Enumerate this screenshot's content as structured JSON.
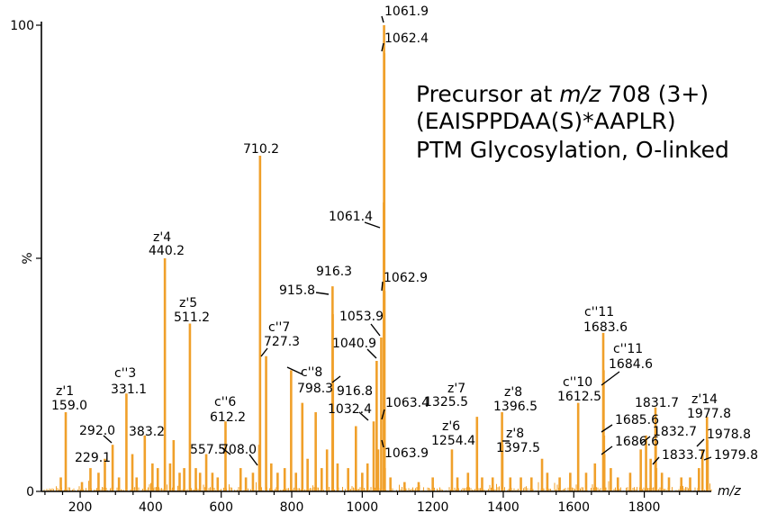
{
  "chart_data": {
    "type": "bar",
    "xlabel": "m/z",
    "ylabel": "%",
    "xlim": [
      90,
      1990
    ],
    "ylim": [
      0,
      100
    ],
    "x_ticks": [
      "200",
      "400",
      "600",
      "800",
      "1000",
      "1200",
      "1400",
      "1600",
      "1800"
    ],
    "y_ticks": [
      "0",
      "50",
      "100"
    ],
    "annotation": {
      "line1_prefix": "Precursor at ",
      "line1_italic": "m/z",
      "line1_suffix": " 708 (3+)",
      "line2": "(EAISPPDAA(S)*AAPLR)",
      "line3": "PTM Glycosylation, O-linked"
    },
    "labeled_peaks": [
      {
        "mz": 159.0,
        "intensity": 17,
        "ion": "z'1",
        "label": "159.0"
      },
      {
        "mz": 229.1,
        "intensity": 5,
        "ion": "",
        "label": "229.1"
      },
      {
        "mz": 292.0,
        "intensity": 10,
        "ion": "",
        "label": "292.0"
      },
      {
        "mz": 331.1,
        "intensity": 21,
        "ion": "c''3",
        "label": "331.1"
      },
      {
        "mz": 383.2,
        "intensity": 12,
        "ion": "",
        "label": "383.2"
      },
      {
        "mz": 440.2,
        "intensity": 50,
        "ion": "z'4",
        "label": "440.2"
      },
      {
        "mz": 511.2,
        "intensity": 36,
        "ion": "z'5",
        "label": "511.2"
      },
      {
        "mz": 557.5,
        "intensity": 8,
        "ion": "",
        "label": "557.5"
      },
      {
        "mz": 612.2,
        "intensity": 15,
        "ion": "c''6",
        "label": "612.2"
      },
      {
        "mz": 708.0,
        "intensity": 10,
        "ion": "",
        "label": "708.0"
      },
      {
        "mz": 710.2,
        "intensity": 72,
        "ion": "",
        "label": "710.2"
      },
      {
        "mz": 727.3,
        "intensity": 29,
        "ion": "c''7",
        "label": "727.3"
      },
      {
        "mz": 798.3,
        "intensity": 26,
        "ion": "c''8",
        "label": "798.3"
      },
      {
        "mz": 915.8,
        "intensity": 44,
        "ion": "",
        "label": "915.8"
      },
      {
        "mz": 916.3,
        "intensity": 38,
        "ion": "",
        "label": "916.3"
      },
      {
        "mz": 916.8,
        "intensity": 24,
        "ion": "",
        "label": "916.8"
      },
      {
        "mz": 1032.4,
        "intensity": 15,
        "ion": "",
        "label": "1032.4"
      },
      {
        "mz": 1040.9,
        "intensity": 28,
        "ion": "",
        "label": "1040.9"
      },
      {
        "mz": 1053.9,
        "intensity": 33,
        "ion": "",
        "label": "1053.9"
      },
      {
        "mz": 1061.4,
        "intensity": 62,
        "ion": "",
        "label": "1061.4"
      },
      {
        "mz": 1061.9,
        "intensity": 100,
        "ion": "",
        "label": "1061.9"
      },
      {
        "mz": 1062.4,
        "intensity": 94,
        "ion": "",
        "label": "1062.4"
      },
      {
        "mz": 1062.9,
        "intensity": 43,
        "ion": "",
        "label": "1062.9"
      },
      {
        "mz": 1063.4,
        "intensity": 18,
        "ion": "",
        "label": "1063.4"
      },
      {
        "mz": 1063.9,
        "intensity": 5,
        "ion": "",
        "label": "1063.9"
      },
      {
        "mz": 1254.4,
        "intensity": 9,
        "ion": "z'6",
        "label": "1254.4"
      },
      {
        "mz": 1325.5,
        "intensity": 16,
        "ion": "z'7",
        "label": "1325.5"
      },
      {
        "mz": 1396.5,
        "intensity": 17,
        "ion": "z'8",
        "label": "1396.5"
      },
      {
        "mz": 1397.5,
        "intensity": 10,
        "ion": "z'8",
        "label": "1397.5"
      },
      {
        "mz": 1612.5,
        "intensity": 19,
        "ion": "c''10",
        "label": "1612.5"
      },
      {
        "mz": 1683.6,
        "intensity": 34,
        "ion": "c''11",
        "label": "1683.6"
      },
      {
        "mz": 1684.6,
        "intensity": 26,
        "ion": "c''11",
        "label": "1684.6"
      },
      {
        "mz": 1685.6,
        "intensity": 12,
        "ion": "",
        "label": "1685.6"
      },
      {
        "mz": 1686.6,
        "intensity": 8,
        "ion": "",
        "label": "1686.6"
      },
      {
        "mz": 1831.7,
        "intensity": 18,
        "ion": "",
        "label": "1831.7"
      },
      {
        "mz": 1832.7,
        "intensity": 11,
        "ion": "",
        "label": "1832.7"
      },
      {
        "mz": 1833.7,
        "intensity": 5,
        "ion": "",
        "label": "1833.7"
      },
      {
        "mz": 1977.8,
        "intensity": 16,
        "ion": "z'14",
        "label": "1977.8"
      },
      {
        "mz": 1978.8,
        "intensity": 11,
        "ion": "",
        "label": "1978.8"
      },
      {
        "mz": 1979.8,
        "intensity": 7,
        "ion": "",
        "label": "1979.8"
      }
    ],
    "minor_peaks": [
      {
        "mz": 145,
        "intensity": 3
      },
      {
        "mz": 205,
        "intensity": 2
      },
      {
        "mz": 252,
        "intensity": 4
      },
      {
        "mz": 270,
        "intensity": 7
      },
      {
        "mz": 310,
        "intensity": 3
      },
      {
        "mz": 348,
        "intensity": 8
      },
      {
        "mz": 360,
        "intensity": 3
      },
      {
        "mz": 405,
        "intensity": 6
      },
      {
        "mz": 420,
        "intensity": 5
      },
      {
        "mz": 455,
        "intensity": 6
      },
      {
        "mz": 465,
        "intensity": 11
      },
      {
        "mz": 482,
        "intensity": 4
      },
      {
        "mz": 495,
        "intensity": 5
      },
      {
        "mz": 528,
        "intensity": 5
      },
      {
        "mz": 540,
        "intensity": 4
      },
      {
        "mz": 575,
        "intensity": 4
      },
      {
        "mz": 590,
        "intensity": 3
      },
      {
        "mz": 655,
        "intensity": 5
      },
      {
        "mz": 670,
        "intensity": 3
      },
      {
        "mz": 690,
        "intensity": 4
      },
      {
        "mz": 742,
        "intensity": 6
      },
      {
        "mz": 760,
        "intensity": 4
      },
      {
        "mz": 780,
        "intensity": 5
      },
      {
        "mz": 812,
        "intensity": 4
      },
      {
        "mz": 830,
        "intensity": 19
      },
      {
        "mz": 845,
        "intensity": 7
      },
      {
        "mz": 868,
        "intensity": 17
      },
      {
        "mz": 885,
        "intensity": 5
      },
      {
        "mz": 900,
        "intensity": 9
      },
      {
        "mz": 930,
        "intensity": 6
      },
      {
        "mz": 960,
        "intensity": 5
      },
      {
        "mz": 982,
        "intensity": 14
      },
      {
        "mz": 1000,
        "intensity": 4
      },
      {
        "mz": 1015,
        "intensity": 6
      },
      {
        "mz": 1045,
        "intensity": 9
      },
      {
        "mz": 1080,
        "intensity": 3
      },
      {
        "mz": 1120,
        "intensity": 2
      },
      {
        "mz": 1160,
        "intensity": 2
      },
      {
        "mz": 1200,
        "intensity": 3
      },
      {
        "mz": 1270,
        "intensity": 3
      },
      {
        "mz": 1300,
        "intensity": 4
      },
      {
        "mz": 1340,
        "intensity": 3
      },
      {
        "mz": 1370,
        "intensity": 3
      },
      {
        "mz": 1420,
        "intensity": 3
      },
      {
        "mz": 1450,
        "intensity": 3
      },
      {
        "mz": 1480,
        "intensity": 3
      },
      {
        "mz": 1510,
        "intensity": 7
      },
      {
        "mz": 1525,
        "intensity": 4
      },
      {
        "mz": 1560,
        "intensity": 3
      },
      {
        "mz": 1590,
        "intensity": 4
      },
      {
        "mz": 1635,
        "intensity": 4
      },
      {
        "mz": 1660,
        "intensity": 6
      },
      {
        "mz": 1705,
        "intensity": 5
      },
      {
        "mz": 1725,
        "intensity": 3
      },
      {
        "mz": 1760,
        "intensity": 4
      },
      {
        "mz": 1790,
        "intensity": 9
      },
      {
        "mz": 1805,
        "intensity": 12
      },
      {
        "mz": 1818,
        "intensity": 7
      },
      {
        "mz": 1850,
        "intensity": 4
      },
      {
        "mz": 1870,
        "intensity": 3
      },
      {
        "mz": 1905,
        "intensity": 3
      },
      {
        "mz": 1930,
        "intensity": 3
      },
      {
        "mz": 1955,
        "intensity": 5
      },
      {
        "mz": 1965,
        "intensity": 9
      }
    ],
    "colors": {
      "peaks": "#f0a02a",
      "axes": "#000000"
    }
  }
}
